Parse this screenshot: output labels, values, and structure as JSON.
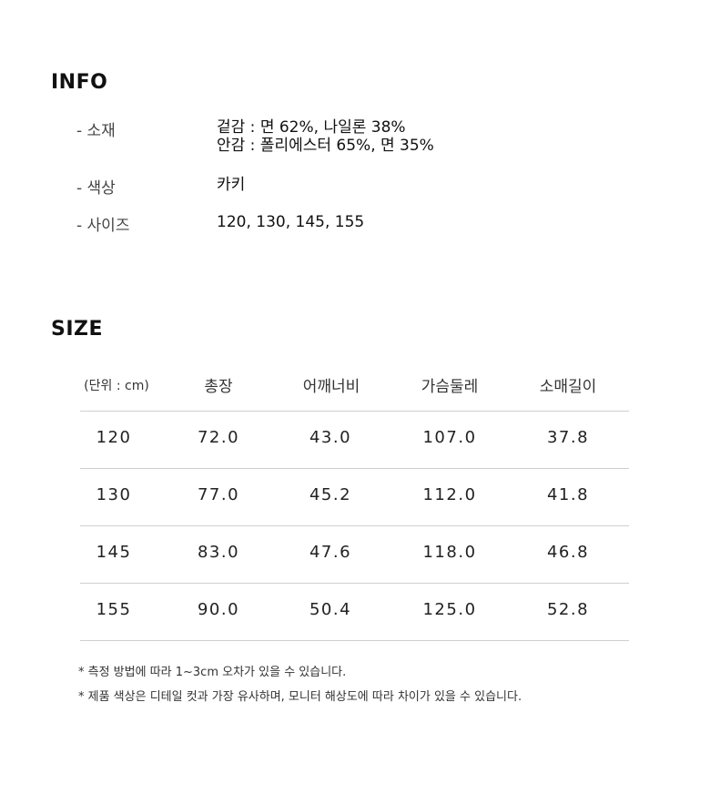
{
  "info": {
    "title": "INFO",
    "rows": [
      {
        "label": "- 소재",
        "values": [
          "겉감 : 면 62%,  나일론 38%",
          "안감 : 폴리에스터 65%, 면 35%"
        ]
      },
      {
        "label": "- 색상",
        "values": [
          "카키"
        ]
      },
      {
        "label": "- 사이즈",
        "values": [
          "120, 130, 145, 155"
        ]
      }
    ]
  },
  "size": {
    "title": "SIZE",
    "headers": [
      "(단위 : cm)",
      "총장",
      "어깨너비",
      "가슴둘레",
      "소매길이"
    ],
    "rows": [
      [
        "120",
        "72.0",
        "43.0",
        "107.0",
        "37.8"
      ],
      [
        "130",
        "77.0",
        "45.2",
        "112.0",
        "41.8"
      ],
      [
        "145",
        "83.0",
        "47.6",
        "118.0",
        "46.8"
      ],
      [
        "155",
        "90.0",
        "50.4",
        "125.0",
        "52.8"
      ]
    ],
    "notes": [
      "* 측정 방법에 따라 1~3cm 오차가 있을 수 있습니다.",
      "* 제품 색상은 디테일 컷과 가장 유사하며, 모니터 해상도에 따라 차이가 있을 수 있습니다."
    ]
  }
}
